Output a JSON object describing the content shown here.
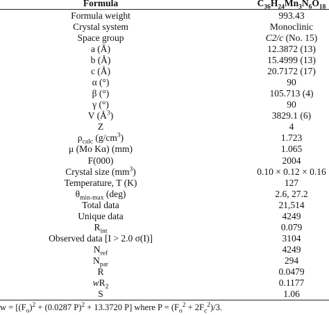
{
  "header": {
    "label": [
      "Formula"
    ],
    "value": [
      "C",
      {
        "text": "36",
        "style": "sub"
      },
      "H",
      {
        "text": "24",
        "style": "sub"
      },
      "Mn",
      {
        "text": "3",
        "style": "sub"
      },
      "N",
      {
        "text": "6",
        "style": "sub"
      },
      "O",
      {
        "text": "18",
        "style": "sub"
      }
    ]
  },
  "rows": [
    {
      "label": [
        "Formula weight"
      ],
      "value": [
        "993.43"
      ]
    },
    {
      "label": [
        "Crystal system"
      ],
      "value": [
        "Monoclinic"
      ]
    },
    {
      "label": [
        "Space group"
      ],
      "value": [
        {
          "text": "C2/c",
          "style": "italic"
        },
        " (No. 15)"
      ]
    },
    {
      "label": [
        "a (Å)"
      ],
      "value": [
        "12.3872 (13)"
      ]
    },
    {
      "label": [
        "b (Å)"
      ],
      "value": [
        "15.4999 (13)"
      ]
    },
    {
      "label": [
        "c (Å)"
      ],
      "value": [
        "20.7172 (17)"
      ]
    },
    {
      "label": [
        "α (°)"
      ],
      "value": [
        "90"
      ]
    },
    {
      "label": [
        "β (°)"
      ],
      "value": [
        "105.713 (4)"
      ]
    },
    {
      "label": [
        "γ (°)"
      ],
      "value": [
        "90"
      ]
    },
    {
      "label": [
        "V (Å",
        {
          "text": "3",
          "style": "sup"
        },
        ")"
      ],
      "value": [
        "3829.1 (6)"
      ]
    },
    {
      "label": [
        "Z"
      ],
      "value": [
        "4"
      ]
    },
    {
      "label": [
        "ρ",
        {
          "text": "calc",
          "style": "sub"
        },
        " (g/cm",
        {
          "text": "3",
          "style": "sup"
        },
        ")"
      ],
      "value": [
        "1.723"
      ]
    },
    {
      "label": [
        "μ (Mo Kα) (mm)"
      ],
      "value": [
        "1.065"
      ]
    },
    {
      "label": [
        "F(000)"
      ],
      "value": [
        "2004"
      ]
    },
    {
      "label": [
        "Crystal size (mm",
        {
          "text": "3",
          "style": "sup"
        },
        ")"
      ],
      "value": [
        "0.10 × 0.12 × 0.16"
      ]
    },
    {
      "label": [
        "Temperature, T (K)"
      ],
      "value": [
        "127"
      ]
    },
    {
      "label": [
        "θ",
        {
          "text": "min-max",
          "style": "sub"
        },
        " (deg)"
      ],
      "value": [
        "2.6, 27.2"
      ]
    },
    {
      "label": [
        "Total data"
      ],
      "value": [
        "21,514"
      ]
    },
    {
      "label": [
        "Unique data"
      ],
      "value": [
        "4249"
      ]
    },
    {
      "label": [
        "R",
        {
          "text": "int",
          "style": "sub"
        }
      ],
      "value": [
        "0.079"
      ]
    },
    {
      "label": [
        "Observed data [I > 2.0 σ(I)]"
      ],
      "value": [
        "3104"
      ]
    },
    {
      "label": [
        "N",
        {
          "text": "ref",
          "style": "sub"
        }
      ],
      "value": [
        "4249"
      ]
    },
    {
      "label": [
        "N",
        {
          "text": "par",
          "style": "sub"
        }
      ],
      "value": [
        "294"
      ]
    },
    {
      "label": [
        "R"
      ],
      "value": [
        "0.0479"
      ]
    },
    {
      "label": [
        {
          "text": "w",
          "style": "italic"
        },
        "R",
        {
          "text": "2",
          "style": "sub"
        }
      ],
      "value": [
        "0.1177"
      ]
    },
    {
      "label": [
        "S"
      ],
      "value": [
        "1.06"
      ]
    }
  ],
  "footnote": [
    "w = [(F",
    {
      "text": "o",
      "style": "sub"
    },
    ")",
    {
      "text": "2",
      "style": "sup"
    },
    " + (0.0287 P)",
    {
      "text": "2",
      "style": "sup"
    },
    " + 13.3720 P] where P = (F",
    {
      "text": "o",
      "style": "sub"
    },
    {
      "text": "2",
      "style": "sup"
    },
    " + 2F",
    {
      "text": "c",
      "style": "sub"
    },
    {
      "text": "2",
      "style": "sup"
    },
    ")/3."
  ]
}
